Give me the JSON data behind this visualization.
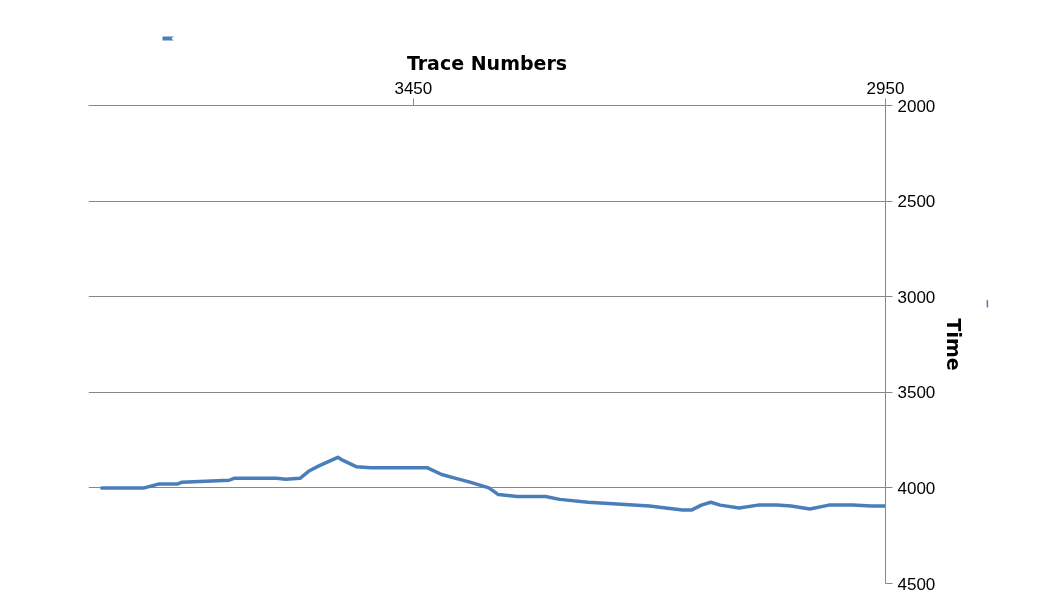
{
  "chart_data": {
    "type": "line",
    "xlabel": "Trace Numbers",
    "ylabel": "Time",
    "x": [
      3780,
      3735,
      3720,
      3700,
      3695,
      3670,
      3645,
      3640,
      3595,
      3585,
      3570,
      3560,
      3550,
      3530,
      3525,
      3510,
      3495,
      3485,
      3435,
      3420,
      3405,
      3390,
      3370,
      3360,
      3340,
      3310,
      3295,
      3265,
      3230,
      3200,
      3165,
      3155,
      3145,
      3135,
      3125,
      3105,
      3085,
      3065,
      3050,
      3030,
      3010,
      2985,
      2965,
      2950
    ],
    "values": [
      4000,
      4000,
      3980,
      3980,
      3970,
      3965,
      3960,
      3950,
      3950,
      3955,
      3950,
      3910,
      3885,
      3840,
      3855,
      3890,
      3895,
      3895,
      3895,
      3930,
      3950,
      3970,
      4000,
      4035,
      4045,
      4045,
      4060,
      4075,
      4085,
      4095,
      4115,
      4115,
      4090,
      4075,
      4090,
      4105,
      4090,
      4090,
      4095,
      4110,
      4090,
      4090,
      4095,
      4095
    ],
    "color": "#4a7ebb",
    "xlim": [
      3794,
      2950
    ],
    "ylim": [
      4500,
      2000
    ],
    "xticks": [
      3450,
      2950
    ],
    "yticks": [
      2000,
      2500,
      3000,
      3500,
      4000,
      4500
    ],
    "grid": "y"
  }
}
